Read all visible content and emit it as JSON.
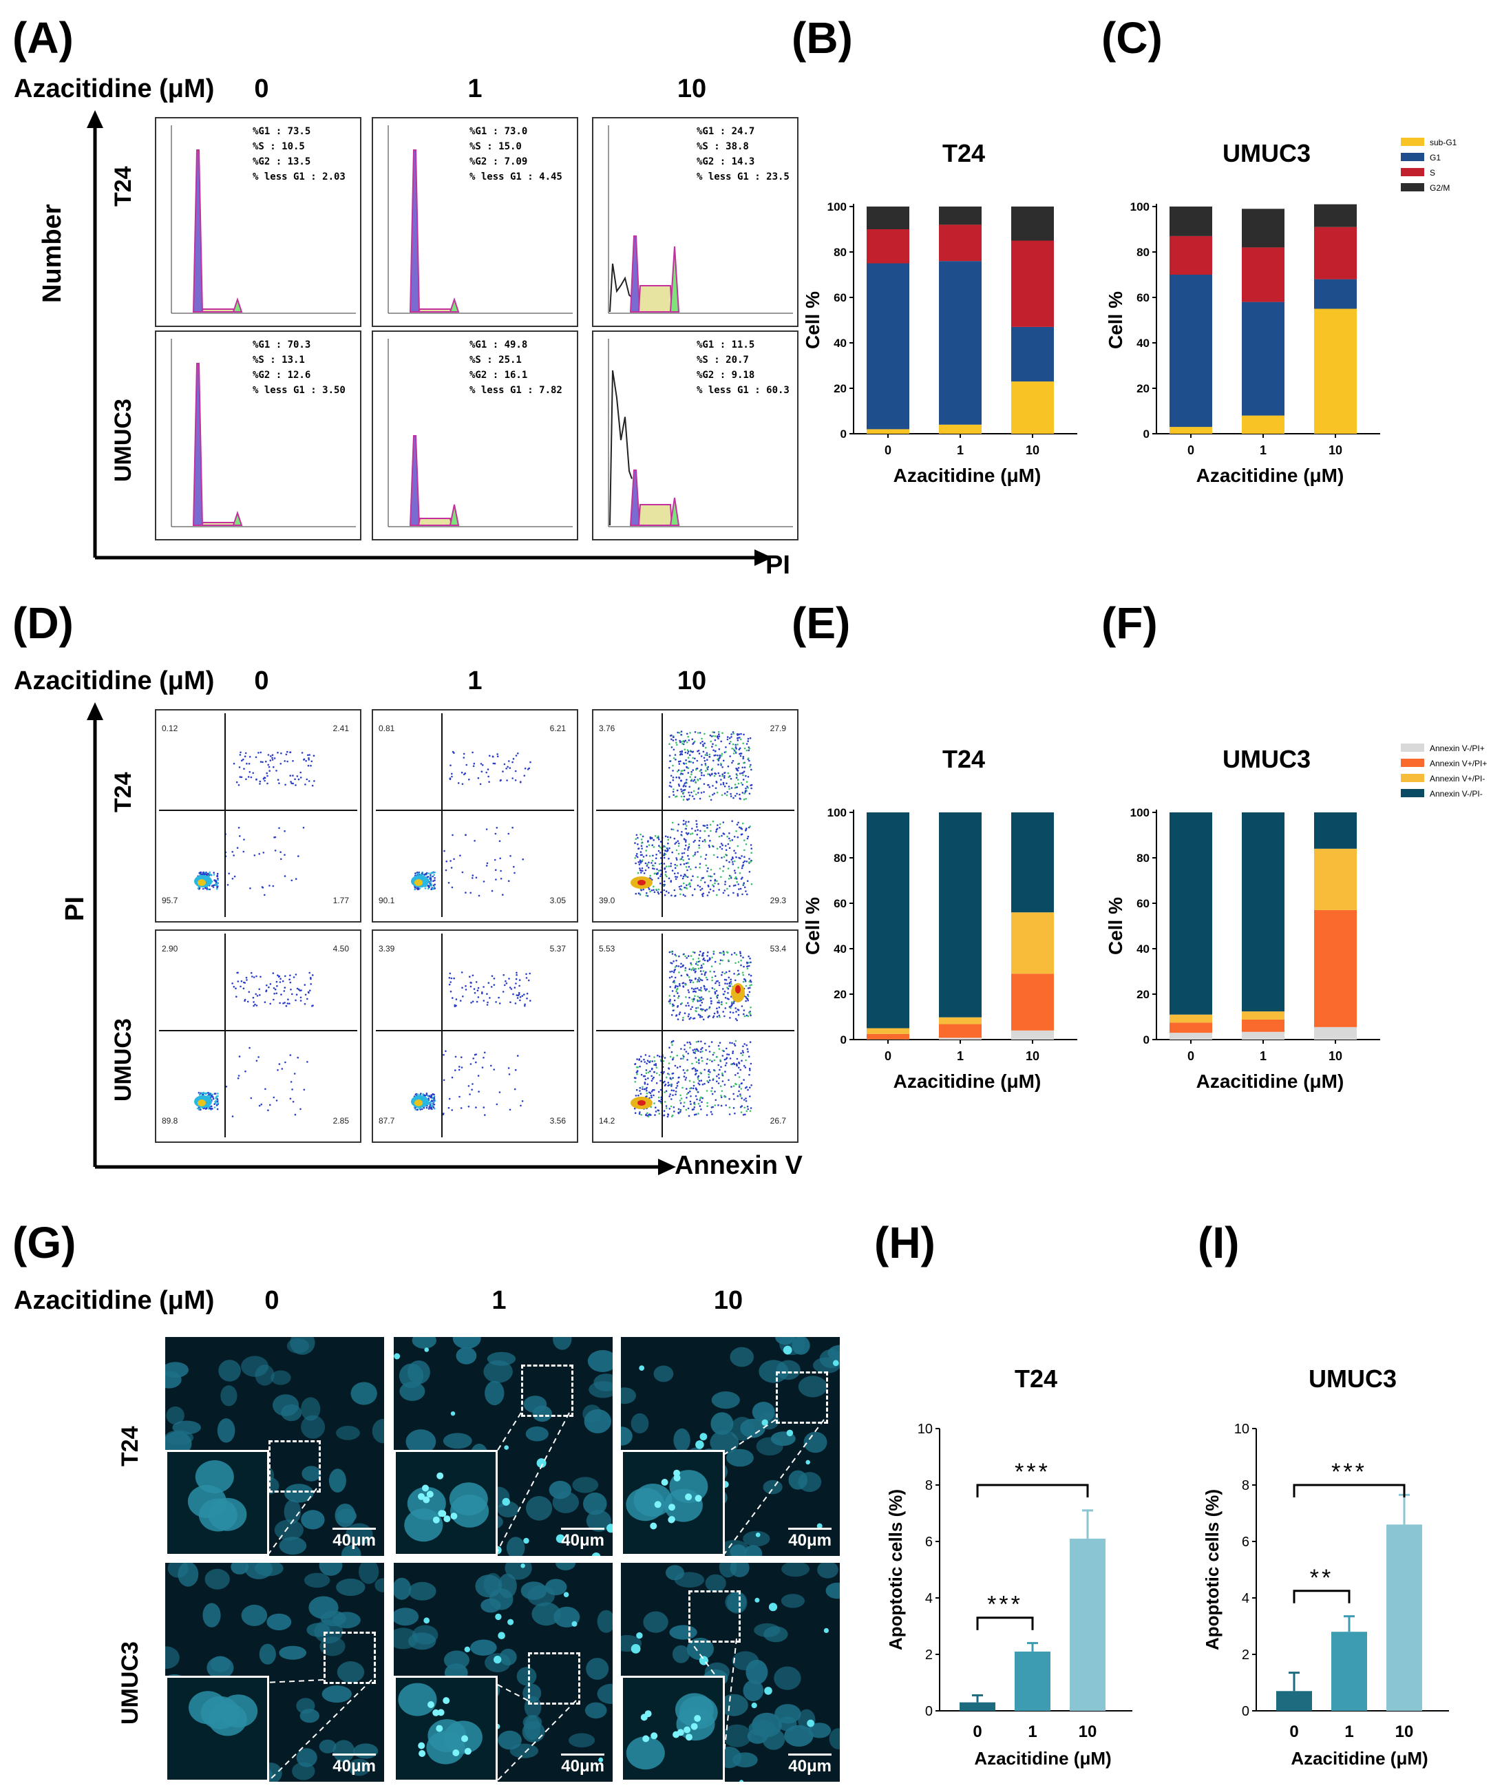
{
  "panel_letters": [
    "(A)",
    "(B)",
    "(C)",
    "(D)",
    "(E)",
    "(F)",
    "(G)",
    "(H)",
    "(I)"
  ],
  "azacitidine_label": "Azacitidine (μM)",
  "concentrations": [
    "0",
    "1",
    "10"
  ],
  "rows": [
    "T24",
    "UMUC3"
  ],
  "flow_a": {
    "y_axis": "Number",
    "x_axis": "PI",
    "stats": [
      [
        [
          "%G1 : 73.5",
          "%S : 10.5",
          "%G2 : 13.5",
          "% less G1 : 2.03"
        ],
        [
          "%G1 : 73.0",
          "%S : 15.0",
          "%G2 : 7.09",
          "% less G1 : 4.45"
        ],
        [
          "%G1 : 24.7",
          "%S : 38.8",
          "%G2 : 14.3",
          "% less G1 : 23.5"
        ]
      ],
      [
        [
          "%G1 : 70.3",
          "%S : 13.1",
          "%G2 : 12.6",
          "% less G1 : 3.50"
        ],
        [
          "%G1 : 49.8",
          "%S : 25.1",
          "%G2 : 16.1",
          "% less G1 : 7.82"
        ],
        [
          "%G1 : 11.5",
          "%S : 20.7",
          "%G2 : 9.18",
          "% less G1 : 60.3"
        ]
      ]
    ]
  },
  "flow_d": {
    "y_axis": "PI",
    "x_axis": "Annexin V",
    "quadrants": [
      [
        [
          "0.12",
          "2.41",
          "1.77",
          "95.7"
        ],
        [
          "0.81",
          "6.21",
          "3.05",
          "90.1"
        ],
        [
          "3.76",
          "27.9",
          "29.3",
          "39.0"
        ]
      ],
      [
        [
          "2.90",
          "4.50",
          "2.85",
          "89.8"
        ],
        [
          "3.39",
          "5.37",
          "3.56",
          "87.7"
        ],
        [
          "5.53",
          "53.4",
          "26.7",
          "14.2"
        ]
      ]
    ]
  },
  "microscopy": {
    "scale": "40μm"
  },
  "colors": {
    "subG1": "#f7c325",
    "G1": "#1f4e8c",
    "S": "#c3202e",
    "G2M": "#2d2d2d",
    "annex_nn": "#0a4b63",
    "annex_pn": "#f7bd3a",
    "annex_pp": "#f96a2c",
    "annex_np": "#d9d9d9",
    "bar0": "#1c6b7e",
    "bar1": "#3d9bb2",
    "bar10": "#89c5d2"
  },
  "chart_data": [
    {
      "id": "B",
      "type": "bar",
      "stacked": true,
      "title": "T24",
      "xlabel": "Azacitidine (μM)",
      "ylabel": "Cell %",
      "categories": [
        "0",
        "1",
        "10"
      ],
      "ylim": [
        0,
        100
      ],
      "yticks": [
        0,
        20,
        40,
        60,
        80,
        100
      ],
      "series": [
        {
          "name": "sub-G1",
          "values": [
            2,
            4,
            23
          ]
        },
        {
          "name": "G1",
          "values": [
            73,
            72,
            24
          ]
        },
        {
          "name": "S",
          "values": [
            15,
            16,
            38
          ]
        },
        {
          "name": "G2/M",
          "values": [
            10,
            8,
            15
          ]
        }
      ]
    },
    {
      "id": "C",
      "type": "bar",
      "stacked": true,
      "title": "UMUC3",
      "xlabel": "Azacitidine (μM)",
      "ylabel": "Cell %",
      "categories": [
        "0",
        "1",
        "10"
      ],
      "ylim": [
        0,
        100
      ],
      "yticks": [
        0,
        20,
        40,
        60,
        80,
        100
      ],
      "legend": "top-right",
      "series": [
        {
          "name": "sub-G1",
          "values": [
            3,
            8,
            55
          ]
        },
        {
          "name": "G1",
          "values": [
            67,
            50,
            13
          ]
        },
        {
          "name": "S",
          "values": [
            17,
            24,
            23
          ]
        },
        {
          "name": "G2/M",
          "values": [
            13,
            17,
            10
          ]
        }
      ]
    },
    {
      "id": "E",
      "type": "bar",
      "stacked": true,
      "title": "T24",
      "xlabel": "Azacitidine (μM)",
      "ylabel": "Cell %",
      "categories": [
        "0",
        "1",
        "10"
      ],
      "ylim": [
        0,
        100
      ],
      "yticks": [
        0,
        20,
        40,
        60,
        80,
        100
      ],
      "series": [
        {
          "name": "Annexin V-/PI+",
          "values": [
            0.1,
            0.8,
            4
          ]
        },
        {
          "name": "Annexin V+/PI+",
          "values": [
            2.4,
            6,
            25
          ]
        },
        {
          "name": "Annexin V+/PI-",
          "values": [
            2.5,
            3,
            27
          ]
        },
        {
          "name": "Annexin V-/PI-",
          "values": [
            95,
            90.2,
            44
          ]
        }
      ]
    },
    {
      "id": "F",
      "type": "bar",
      "stacked": true,
      "title": "UMUC3",
      "xlabel": "Azacitidine (μM)",
      "ylabel": "Cell %",
      "categories": [
        "0",
        "1",
        "10"
      ],
      "ylim": [
        0,
        100
      ],
      "yticks": [
        0,
        20,
        40,
        60,
        80,
        100
      ],
      "legend": "top-right",
      "series": [
        {
          "name": "Annexin V-/PI+",
          "values": [
            3,
            3.4,
            5.5
          ]
        },
        {
          "name": "Annexin V+/PI+",
          "values": [
            4.5,
            5.4,
            51.5
          ]
        },
        {
          "name": "Annexin V+/PI-",
          "values": [
            3.5,
            3.6,
            27
          ]
        },
        {
          "name": "Annexin V-/PI-",
          "values": [
            89,
            87.6,
            16
          ]
        }
      ]
    },
    {
      "id": "H",
      "type": "bar",
      "title": "T24",
      "xlabel": "Azacitidine (μM)",
      "ylabel": "Apoptotic cells (%)",
      "categories": [
        "0",
        "1",
        "10"
      ],
      "values": [
        0.3,
        2.1,
        6.1
      ],
      "errors": [
        0.25,
        0.3,
        1.0
      ],
      "ylim": [
        0,
        10
      ],
      "yticks": [
        0,
        2,
        4,
        6,
        8,
        10
      ],
      "significance": [
        {
          "from": "0",
          "to": "1",
          "label": "***"
        },
        {
          "from": "0",
          "to": "10",
          "label": "***"
        }
      ]
    },
    {
      "id": "I",
      "type": "bar",
      "title": "UMUC3",
      "xlabel": "Azacitidine (μM)",
      "ylabel": "Apoptotic cells (%)",
      "categories": [
        "0",
        "1",
        "10"
      ],
      "values": [
        0.7,
        2.8,
        6.6
      ],
      "errors": [
        0.65,
        0.55,
        1.05
      ],
      "ylim": [
        0,
        10
      ],
      "yticks": [
        0,
        2,
        4,
        6,
        8,
        10
      ],
      "significance": [
        {
          "from": "0",
          "to": "1",
          "label": "**"
        },
        {
          "from": "0",
          "to": "10",
          "label": "***"
        }
      ]
    }
  ]
}
